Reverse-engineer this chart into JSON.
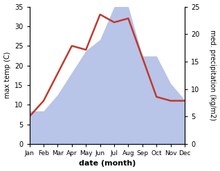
{
  "months": [
    "Jan",
    "Feb",
    "Mar",
    "Apr",
    "May",
    "Jun",
    "Jul",
    "Aug",
    "Sep",
    "Oct",
    "Nov",
    "Dec"
  ],
  "temperature": [
    7,
    11,
    18,
    25,
    24,
    33,
    31,
    32,
    22,
    12,
    11,
    11
  ],
  "precipitation": [
    6,
    6,
    9,
    13,
    17,
    19,
    25,
    25,
    16,
    16,
    11,
    8
  ],
  "temp_ylim": [
    0,
    35
  ],
  "precip_ylim": [
    0,
    25
  ],
  "temp_color": "#c0392b",
  "precip_color": "#b8c4e8",
  "xlabel": "date (month)",
  "ylabel_left": "max temp (C)",
  "ylabel_right": "med. precipitation (kg/m2)",
  "background_color": "#ffffff",
  "temp_linewidth": 1.8,
  "figsize": [
    3.18,
    2.47
  ],
  "dpi": 100
}
